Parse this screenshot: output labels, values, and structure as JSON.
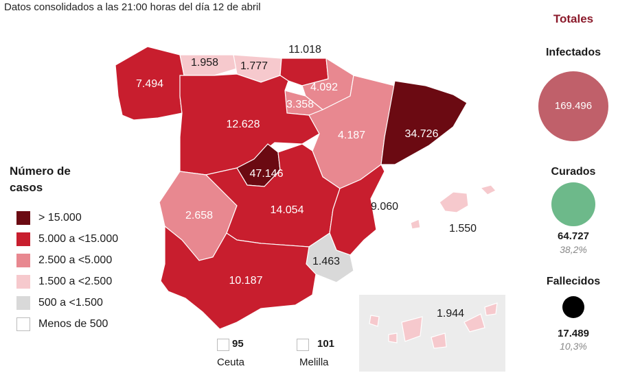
{
  "subtitle": "Datos consolidados a las 21:00 horas del día 12 de abril",
  "legend": {
    "title": "Número de casos",
    "items": [
      {
        "label": "> 15.000",
        "color": "#6b0a12"
      },
      {
        "label": "5.000 a <15.000",
        "color": "#c81e2e"
      },
      {
        "label": "2.500 a <5.000",
        "color": "#e88890"
      },
      {
        "label": "1.500 a <2.500",
        "color": "#f6c9cd"
      },
      {
        "label": "500 a <1.500",
        "color": "#d9d9d9"
      },
      {
        "label": "Menos de 500",
        "color": "#ffffff"
      }
    ]
  },
  "regions": [
    {
      "name": "Galicia",
      "value": "7.494",
      "color": "#c81e2e"
    },
    {
      "name": "Asturias",
      "value": "1.958",
      "color": "#f6c9cd"
    },
    {
      "name": "Cantabria",
      "value": "1.777",
      "color": "#f6c9cd"
    },
    {
      "name": "País Vasco",
      "value": "11.018",
      "color": "#c81e2e"
    },
    {
      "name": "Navarra",
      "value": "4.092",
      "color": "#e88890"
    },
    {
      "name": "La Rioja",
      "value": "3.358",
      "color": "#e88890"
    },
    {
      "name": "Castilla y León",
      "value": "12.628",
      "color": "#c81e2e"
    },
    {
      "name": "Aragón",
      "value": "4.187",
      "color": "#e88890"
    },
    {
      "name": "Cataluña",
      "value": "34.726",
      "color": "#6b0a12"
    },
    {
      "name": "Madrid",
      "value": "47.146",
      "color": "#6b0a12"
    },
    {
      "name": "Extremadura",
      "value": "2.658",
      "color": "#e88890"
    },
    {
      "name": "Castilla-La Mancha",
      "value": "14.054",
      "color": "#c81e2e"
    },
    {
      "name": "Comunidad Valenciana",
      "value": "9.060",
      "color": "#c81e2e"
    },
    {
      "name": "Baleares",
      "value": "1.550",
      "color": "#f6c9cd"
    },
    {
      "name": "Murcia",
      "value": "1.463",
      "color": "#d9d9d9"
    },
    {
      "name": "Andalucía",
      "value": "10.187",
      "color": "#c81e2e"
    },
    {
      "name": "Canarias",
      "value": "1.944",
      "color": "#f6c9cd"
    }
  ],
  "cities": [
    {
      "name": "Ceuta",
      "value": "95"
    },
    {
      "name": "Melilla",
      "value": "101"
    }
  ],
  "totals": {
    "title": "Totales",
    "title_color": "#8b1a2b",
    "infectados": {
      "label": "Infectados",
      "value": "169.496",
      "color": "#c0606a"
    },
    "curados": {
      "label": "Curados",
      "value": "64.727",
      "pct": "38,2%",
      "color": "#6db98a"
    },
    "fallecidos": {
      "label": "Fallecidos",
      "value": "17.489",
      "pct": "10,3%",
      "color": "#000000"
    }
  }
}
